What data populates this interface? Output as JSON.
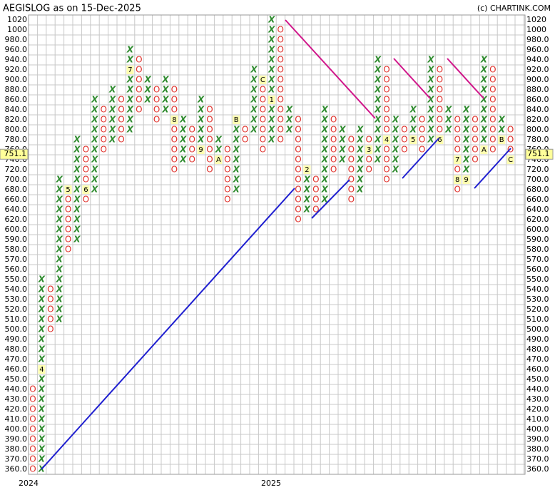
{
  "chart_data": {
    "type": "point_and_figure",
    "title": "AEGISLOG as on 15-Dec-2025",
    "source": "(c) CHARTINK.COM",
    "last_price": 751.1,
    "x_labels": [
      "2024",
      "2025"
    ],
    "yticks": [
      1020,
      1000,
      {
        "value": 980,
        "label": "980.0"
      },
      {
        "value": 960,
        "label": "960.0"
      },
      {
        "value": 940,
        "label": "940.0"
      },
      {
        "value": 920,
        "label": "920.0"
      },
      {
        "value": 900,
        "label": "900.0"
      },
      {
        "value": 880,
        "label": "880.0"
      },
      {
        "value": 860,
        "label": "860.0"
      },
      {
        "value": 840,
        "label": "840.0"
      },
      {
        "value": 820,
        "label": "820.0"
      },
      {
        "value": 800,
        "label": "800.0"
      },
      {
        "value": 780,
        "label": "780.0"
      },
      {
        "value": 760,
        "label": "760.0"
      },
      {
        "value": 740,
        "label": "740.0"
      },
      {
        "value": 720,
        "label": "720.0"
      },
      {
        "value": 700,
        "label": "700.0"
      },
      {
        "value": 680,
        "label": "680.0"
      },
      {
        "value": 660,
        "label": "660.0"
      },
      {
        "value": 640,
        "label": "640.0"
      },
      {
        "value": 620,
        "label": "620.0"
      },
      {
        "value": 600,
        "label": "600.0"
      },
      {
        "value": 590,
        "label": "590.0"
      },
      {
        "value": 580,
        "label": "580.0"
      },
      {
        "value": 570,
        "label": "570.0"
      },
      {
        "value": 560,
        "label": "560.0"
      },
      {
        "value": 550,
        "label": "550.0"
      },
      {
        "value": 540,
        "label": "540.0"
      },
      {
        "value": 530,
        "label": "530.0"
      },
      {
        "value": 520,
        "label": "520.0"
      },
      {
        "value": 510,
        "label": "510.0"
      },
      {
        "value": 500,
        "label": "500.0"
      },
      {
        "value": 490,
        "label": "490.0"
      },
      {
        "value": 480,
        "label": "480.0"
      },
      {
        "value": 470,
        "label": "470.0"
      },
      {
        "value": 460,
        "label": "460.0"
      },
      {
        "value": 450,
        "label": "450.0"
      },
      {
        "value": 440,
        "label": "440.0"
      },
      {
        "value": 430,
        "label": "430.0"
      },
      {
        "value": 420,
        "label": "420.0"
      },
      {
        "value": 410,
        "label": "410.0"
      },
      {
        "value": 400,
        "label": "400.0"
      },
      {
        "value": 390,
        "label": "390.0"
      },
      {
        "value": 380,
        "label": "380.0"
      },
      {
        "value": 370,
        "label": "370.0"
      },
      {
        "value": 360,
        "label": "360.0"
      }
    ],
    "columns": [
      {
        "type": "O",
        "from": 440,
        "to": 360
      },
      {
        "type": "X",
        "from": 360,
        "to": 550,
        "months": [
          {
            "value": 460,
            "label": "4"
          }
        ]
      },
      {
        "type": "O",
        "from": 540,
        "to": 500
      },
      {
        "type": "X",
        "from": 510,
        "to": 700
      },
      {
        "type": "O",
        "from": 680,
        "to": 580,
        "months": [
          {
            "value": 680,
            "label": "5"
          }
        ]
      },
      {
        "type": "X",
        "from": 590,
        "to": 780
      },
      {
        "type": "O",
        "from": 760,
        "to": 660,
        "months": [
          {
            "value": 680,
            "label": "6"
          }
        ]
      },
      {
        "type": "X",
        "from": 680,
        "to": 860
      },
      {
        "type": "O",
        "from": 840,
        "to": 760
      },
      {
        "type": "X",
        "from": 780,
        "to": 880
      },
      {
        "type": "O",
        "from": 860,
        "to": 780
      },
      {
        "type": "X",
        "from": 800,
        "to": 960,
        "months": [
          {
            "value": 920,
            "label": "7"
          }
        ]
      },
      {
        "type": "O",
        "from": 940,
        "to": 840
      },
      {
        "type": "X",
        "from": 860,
        "to": 900
      },
      {
        "type": "O",
        "from": 880,
        "to": 820
      },
      {
        "type": "X",
        "from": 840,
        "to": 900
      },
      {
        "type": "O",
        "from": 880,
        "to": 720,
        "months": [
          {
            "value": 820,
            "label": "8"
          }
        ]
      },
      {
        "type": "X",
        "from": 740,
        "to": 820
      },
      {
        "type": "O",
        "from": 800,
        "to": 740
      },
      {
        "type": "X",
        "from": 760,
        "to": 860,
        "months": [
          {
            "value": 760,
            "label": "9"
          }
        ]
      },
      {
        "type": "O",
        "from": 840,
        "to": 720
      },
      {
        "type": "X",
        "from": 740,
        "to": 780,
        "months": [
          {
            "value": 740,
            "label": "A"
          }
        ]
      },
      {
        "type": "O",
        "from": 760,
        "to": 660
      },
      {
        "type": "X",
        "from": 680,
        "to": 820,
        "months": [
          {
            "value": 820,
            "label": "B"
          }
        ]
      },
      {
        "type": "O",
        "from": 800,
        "to": 780
      },
      {
        "type": "X",
        "from": 800,
        "to": 920
      },
      {
        "type": "O",
        "from": 900,
        "to": 760,
        "months": [
          {
            "value": 900,
            "label": "C"
          }
        ]
      },
      {
        "type": "X",
        "from": 780,
        "to": 1020,
        "months": [
          {
            "value": 860,
            "label": "1"
          }
        ]
      },
      {
        "type": "O",
        "from": 1000,
        "to": 780
      },
      {
        "type": "X",
        "from": 800,
        "to": 840
      },
      {
        "type": "O",
        "from": 820,
        "to": 620
      },
      {
        "type": "X",
        "from": 640,
        "to": 720,
        "months": [
          {
            "value": 720,
            "label": "2"
          }
        ]
      },
      {
        "type": "O",
        "from": 700,
        "to": 640
      },
      {
        "type": "X",
        "from": 660,
        "to": 840
      },
      {
        "type": "O",
        "from": 820,
        "to": 720
      },
      {
        "type": "X",
        "from": 740,
        "to": 800
      },
      {
        "type": "O",
        "from": 780,
        "to": 660
      },
      {
        "type": "X",
        "from": 680,
        "to": 800
      },
      {
        "type": "O",
        "from": 780,
        "to": 720,
        "months": [
          {
            "value": 760,
            "label": "3"
          }
        ]
      },
      {
        "type": "X",
        "from": 740,
        "to": 940
      },
      {
        "type": "O",
        "from": 920,
        "to": 700,
        "months": [
          {
            "value": 780,
            "label": "4"
          }
        ]
      },
      {
        "type": "X",
        "from": 720,
        "to": 820
      },
      {
        "type": "O",
        "from": 800,
        "to": 760
      },
      {
        "type": "X",
        "from": 780,
        "to": 840,
        "months": [
          {
            "value": 780,
            "label": "5"
          }
        ]
      },
      {
        "type": "O",
        "from": 820,
        "to": 760
      },
      {
        "type": "X",
        "from": 780,
        "to": 940
      },
      {
        "type": "O",
        "from": 920,
        "to": 780,
        "months": [
          {
            "value": 780,
            "label": "6"
          }
        ]
      },
      {
        "type": "X",
        "from": 800,
        "to": 840
      },
      {
        "type": "O",
        "from": 820,
        "to": 680,
        "months": [
          {
            "value": 740,
            "label": "7"
          },
          {
            "value": 700,
            "label": "8"
          }
        ]
      },
      {
        "type": "X",
        "from": 700,
        "to": 840,
        "months": [
          {
            "value": 700,
            "label": "9"
          }
        ]
      },
      {
        "type": "O",
        "from": 820,
        "to": 740
      },
      {
        "type": "X",
        "from": 760,
        "to": 940,
        "months": [
          {
            "value": 760,
            "label": "A"
          }
        ]
      },
      {
        "type": "O",
        "from": 920,
        "to": 760
      },
      {
        "type": "X",
        "from": 780,
        "to": 820,
        "months": [
          {
            "value": 780,
            "label": "B"
          }
        ]
      },
      {
        "type": "O",
        "from": 800,
        "to": 740,
        "months": [
          {
            "value": 740,
            "label": "C"
          }
        ]
      }
    ]
  }
}
